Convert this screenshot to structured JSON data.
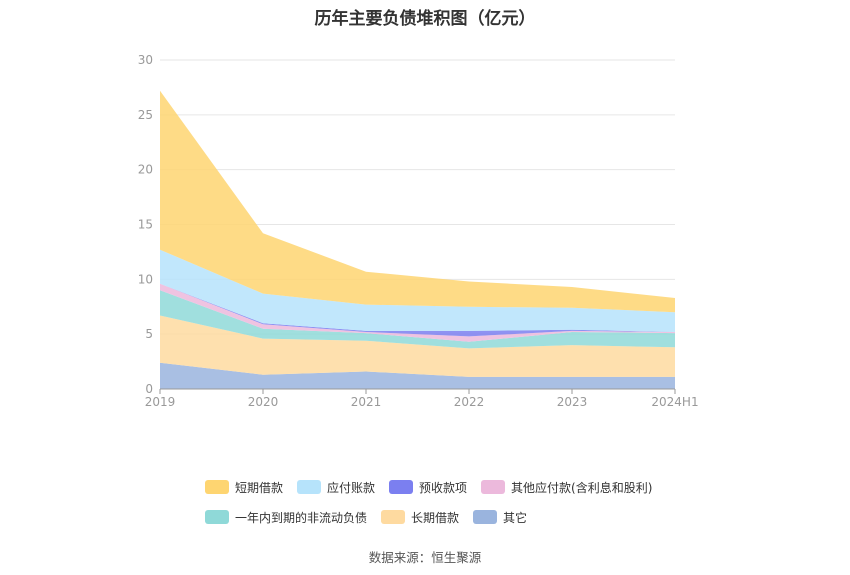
{
  "title": "历年主要负债堆积图（亿元）",
  "source": "数据来源：恒生聚源",
  "chart_data": {
    "type": "area",
    "stacked": true,
    "categories": [
      "2019",
      "2020",
      "2021",
      "2022",
      "2023",
      "2024H1"
    ],
    "ylim": [
      0,
      30
    ],
    "yticks": [
      "0",
      "5",
      "10",
      "15",
      "20",
      "25",
      "30"
    ],
    "grid": true,
    "legend_position": "bottom",
    "series": [
      {
        "name": "其它",
        "color": "#9ab4de",
        "values": [
          2.4,
          1.3,
          1.6,
          1.1,
          1.1,
          1.1
        ]
      },
      {
        "name": "长期借款",
        "color": "#fedaa0",
        "values": [
          4.3,
          3.3,
          2.8,
          2.6,
          2.9,
          2.7
        ]
      },
      {
        "name": "一年内到期的非流动负债",
        "color": "#8fd9d8",
        "values": [
          2.3,
          0.9,
          0.7,
          0.6,
          1.2,
          1.3
        ]
      },
      {
        "name": "其他应付款(含利息和股利)",
        "color": "#ecb9dc",
        "values": [
          0.6,
          0.4,
          0.1,
          0.5,
          0.1,
          0.1
        ]
      },
      {
        "name": "预收款项",
        "color": "#7b7ff0",
        "values": [
          0.0,
          0.1,
          0.1,
          0.5,
          0.1,
          0.0
        ]
      },
      {
        "name": "应付账款",
        "color": "#b6e3fb",
        "values": [
          3.1,
          2.7,
          2.4,
          2.2,
          2.0,
          1.8
        ]
      },
      {
        "name": "短期借款",
        "color": "#fed571",
        "values": [
          14.5,
          5.5,
          3.0,
          2.3,
          1.9,
          1.3
        ]
      }
    ]
  },
  "legend_rows": [
    [
      "短期借款",
      "应付账款",
      "预收款项",
      "其他应付款(含利息和股利)"
    ],
    [
      "一年内到期的非流动负债",
      "长期借款",
      "其它"
    ]
  ]
}
